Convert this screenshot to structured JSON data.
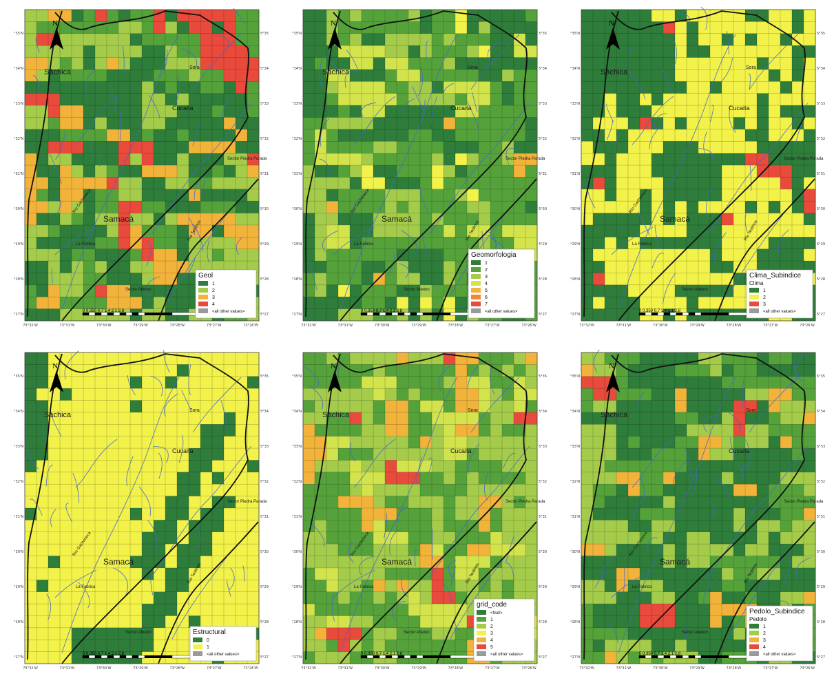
{
  "lon_ticks": [
    "73°32'W",
    "73°31'W",
    "73°30'W",
    "73°29'W",
    "73°28'W",
    "73°27'W",
    "73°26'W"
  ],
  "lat_ticks": [
    "5°35'N",
    "5°34'N",
    "5°33'N",
    "5°32'N",
    "5°31'N",
    "5°30'N",
    "5°29'N",
    "5°28'N",
    "5°27'N"
  ],
  "places": {
    "sachica": "Sáchica",
    "sora": "Sora",
    "cucaita": "Cucaita",
    "samaca": "Samacá",
    "la_fabrica": "La Fabrica",
    "sector_abeton": "Sector Abeton",
    "sector_piedra": "Sector Piedra Parada",
    "rio_gachaneca": "Río Gachaneca",
    "rio_teatinos": "Río Teatinos"
  },
  "north_label": "N",
  "scale": {
    "ticks": "0 0.350 0.7 1.4 2.1 2.8",
    "unit": "Kilometers"
  },
  "colors": {
    "dark_green": "#2e7d3a",
    "green": "#55a23b",
    "light_green": "#a4cc4a",
    "yellow_green": "#d2e34c",
    "yellow": "#f2f24a",
    "orange": "#f2b33a",
    "red": "#e84a3c",
    "gray": "#9a9a9a",
    "river": "#4466cc",
    "border": "#111111"
  },
  "maps": [
    {
      "id": "geol",
      "legend_title": "Geol",
      "legend_subtitle": "",
      "legend_items": [
        "1",
        "2",
        "3",
        "4",
        "<all other values>"
      ],
      "legend_colors": [
        "#2e7d3a",
        "#a4cc4a",
        "#f2b33a",
        "#e84a3c",
        "#9a9a9a"
      ],
      "palette": [
        "#2e7d3a",
        "#55a23b",
        "#a4cc4a",
        "#f2b33a",
        "#e84a3c"
      ],
      "weights": [
        0.33,
        0.2,
        0.3,
        0.13,
        0.04
      ]
    },
    {
      "id": "geomorfologia",
      "legend_title": "Geomorfologia",
      "legend_subtitle": "",
      "legend_items": [
        "1",
        "2",
        "3",
        "4",
        "5",
        "6",
        "7",
        "<all other values>"
      ],
      "legend_colors": [
        "#2e7d3a",
        "#55a23b",
        "#a4cc4a",
        "#d2e34c",
        "#f2b33a",
        "#f08a30",
        "#e84a3c",
        "#9a9a9a"
      ],
      "palette": [
        "#2e7d3a",
        "#55a23b",
        "#a4cc4a",
        "#d2e34c",
        "#f2f24a",
        "#f2b33a"
      ],
      "weights": [
        0.3,
        0.3,
        0.25,
        0.08,
        0.05,
        0.02
      ]
    },
    {
      "id": "clima",
      "legend_title": "Clima_Subindice",
      "legend_subtitle": "Clima",
      "legend_items": [
        "1",
        "2",
        "3",
        "<all other values>"
      ],
      "legend_colors": [
        "#2e7d3a",
        "#f2f24a",
        "#e84a3c",
        "#9a9a9a"
      ],
      "palette": [
        "#2e7d3a",
        "#f2f24a",
        "#e84a3c"
      ],
      "weights": [
        0.55,
        0.42,
        0.03
      ]
    },
    {
      "id": "estructural",
      "legend_title": "Estructural",
      "legend_subtitle": "",
      "legend_items": [
        "0",
        "1",
        "<all other values>"
      ],
      "legend_colors": [
        "#2e7d3a",
        "#f2f24a",
        "#9a9a9a"
      ],
      "palette": [
        "#2e7d3a",
        "#f2f24a"
      ],
      "weights": [
        0.22,
        0.78
      ]
    },
    {
      "id": "grid_code",
      "legend_title": "grid_code",
      "legend_subtitle": "",
      "legend_items": [
        "<Null>",
        "1",
        "2",
        "3",
        "4",
        "5",
        "<all other values>"
      ],
      "legend_colors": [
        "#2e7d3a",
        "#55a23b",
        "#a4cc4a",
        "#f2f24a",
        "#f2b33a",
        "#e84a3c",
        "#9a9a9a"
      ],
      "palette": [
        "#55a23b",
        "#a4cc4a",
        "#d2e34c",
        "#f2b33a",
        "#e84a3c"
      ],
      "weights": [
        0.38,
        0.4,
        0.12,
        0.07,
        0.03
      ]
    },
    {
      "id": "pedolo",
      "legend_title": "Pedolo_Subindice",
      "legend_subtitle": "Pedolo",
      "legend_items": [
        "1",
        "2",
        "3",
        "4",
        "<all other values>"
      ],
      "legend_colors": [
        "#2e7d3a",
        "#a4cc4a",
        "#f2b33a",
        "#e84a3c",
        "#9a9a9a"
      ],
      "palette": [
        "#2e7d3a",
        "#55a23b",
        "#a4cc4a",
        "#f2b33a",
        "#e84a3c"
      ],
      "weights": [
        0.45,
        0.22,
        0.25,
        0.06,
        0.02
      ]
    }
  ]
}
